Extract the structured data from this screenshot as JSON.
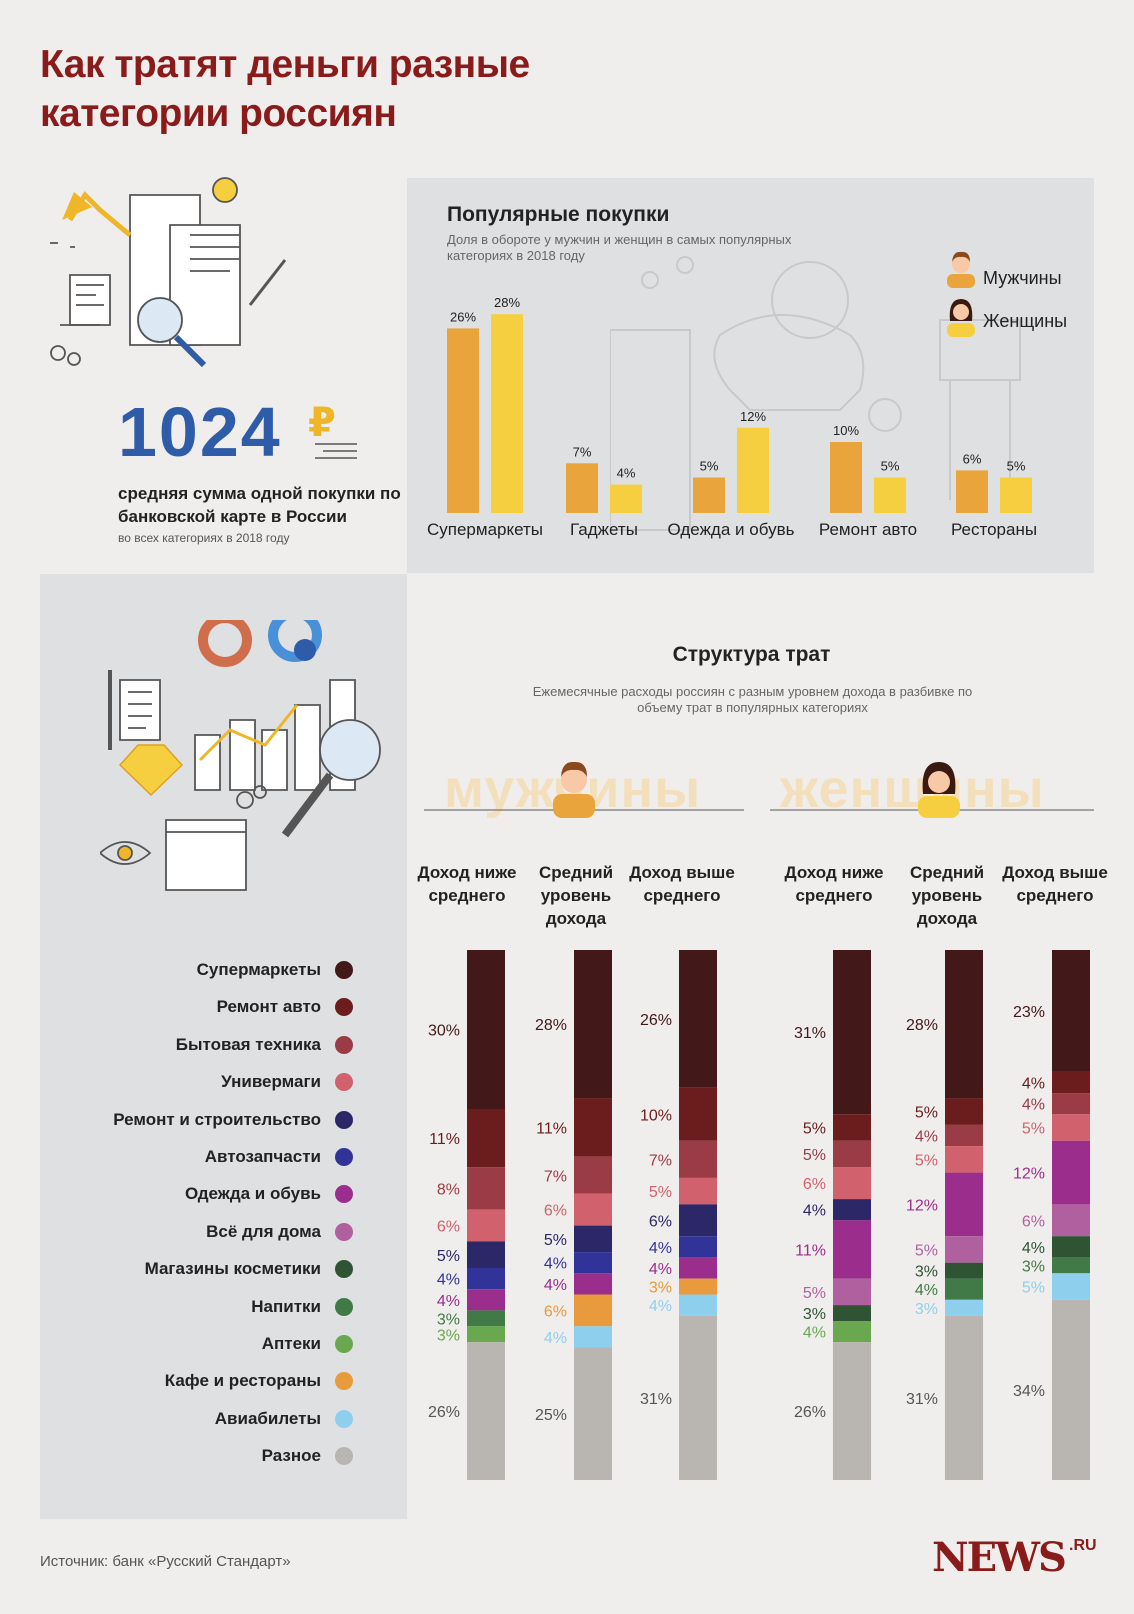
{
  "title": "Как тратят деньги разные категории россиян",
  "summary": {
    "value": "1024",
    "currency": "₽",
    "description": "средняя сумма одной покупки по банковской карте в России",
    "note": "во всех категориях в 2018 году"
  },
  "legend_top": {
    "men": "Мужчины",
    "women": "Женщины"
  },
  "structure": {
    "title": "Структура трат",
    "subtitle": "Ежемесячные расходы россиян с разным уровнем дохода в разбивке по объему трат в популярных категориях",
    "men_label": "мужчины",
    "women_label": "женщины",
    "columns": [
      "Доход ниже среднего",
      "Средний уровень дохода",
      "Доход выше среднего"
    ]
  },
  "source": "Источник: банк «Русский Стандарт»",
  "logo": {
    "name": "NEWS",
    "suffix": ".RU"
  },
  "colors": {
    "men": "#eaa43c",
    "women": "#f5cf3f",
    "categories": [
      "#421818",
      "#6b1c1c",
      "#9b3b45",
      "#d0616d",
      "#2c2766",
      "#323399",
      "#9b2d8c",
      "#b0609f",
      "#2e5433",
      "#417a47",
      "#6aa84f",
      "#e89a3c",
      "#8fcfee",
      "#b9b5b1"
    ]
  },
  "chart_data": [
    {
      "type": "bar",
      "title": "Популярные покупки",
      "subtitle": "Доля в обороте у мужчин и женщин в самых популярных категориях в 2018 году",
      "categories": [
        "Супермаркеты",
        "Гаджеты",
        "Одежда и обувь",
        "Ремонт авто",
        "Рестораны"
      ],
      "series": [
        {
          "name": "Мужчины",
          "values": [
            26,
            7,
            5,
            10,
            6
          ]
        },
        {
          "name": "Женщины",
          "values": [
            28,
            4,
            12,
            5,
            5
          ]
        }
      ],
      "unit": "%"
    },
    {
      "type": "stacked-bar",
      "title": "Структура трат",
      "categories": [
        "Супермаркеты",
        "Ремонт авто",
        "Бытовая техника",
        "Универмаги",
        "Ремонт и строительство",
        "Автозапчасти",
        "Одежда и обувь",
        "Всё для дома",
        "Магазины косметики",
        "Напитки",
        "Аптеки",
        "Кафе и рестораны",
        "Авиабилеты",
        "Разное"
      ],
      "groups": [
        {
          "name": "мужчины",
          "bars": [
            {
              "name": "Доход ниже среднего",
              "values": [
                30,
                11,
                8,
                6,
                5,
                4,
                4,
                0,
                0,
                3,
                3,
                0,
                0,
                26
              ]
            },
            {
              "name": "Средний уровень дохода",
              "values": [
                28,
                11,
                7,
                6,
                5,
                4,
                4,
                0,
                0,
                0,
                0,
                6,
                4,
                25
              ]
            },
            {
              "name": "Доход выше среднего",
              "values": [
                26,
                10,
                7,
                5,
                6,
                4,
                4,
                0,
                0,
                0,
                0,
                3,
                4,
                31
              ]
            }
          ]
        },
        {
          "name": "женщины",
          "bars": [
            {
              "name": "Доход ниже среднего",
              "values": [
                31,
                5,
                5,
                6,
                4,
                0,
                11,
                5,
                3,
                0,
                4,
                0,
                0,
                26
              ]
            },
            {
              "name": "Средний уровень дохода",
              "values": [
                28,
                5,
                4,
                5,
                0,
                0,
                12,
                5,
                3,
                4,
                0,
                0,
                3,
                31
              ]
            },
            {
              "name": "Доход выше среднего",
              "values": [
                23,
                4,
                4,
                5,
                0,
                0,
                12,
                6,
                4,
                3,
                0,
                0,
                5,
                34
              ]
            }
          ]
        }
      ],
      "unit": "%"
    }
  ]
}
